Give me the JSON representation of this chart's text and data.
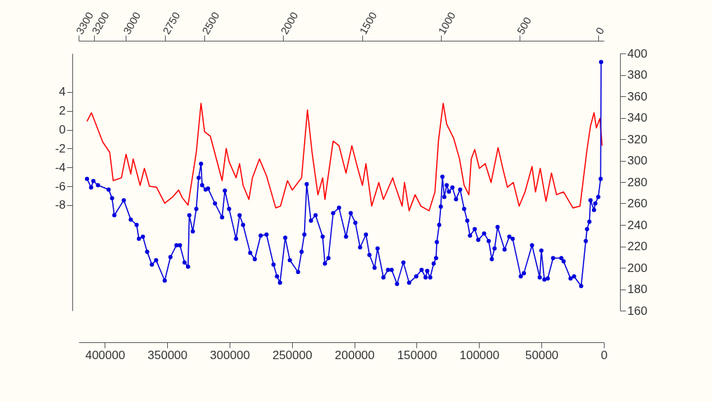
{
  "chart_data": {
    "type": "line",
    "xlim": [
      421000,
      0
    ],
    "xticks": [
      400000,
      350000,
      300000,
      250000,
      200000,
      150000,
      100000,
      50000,
      0
    ],
    "x2lim": [
      3300,
      -36
    ],
    "x2ticks": [
      3300,
      3200,
      3000,
      2750,
      2500,
      2000,
      1500,
      1000,
      500,
      0
    ],
    "ylim": [
      -19.2,
      8.1
    ],
    "yticks": [
      -8,
      -6,
      -4,
      -2,
      0,
      2,
      4
    ],
    "y2lim": [
      160,
      400
    ],
    "y2ticks": [
      160,
      180,
      200,
      220,
      240,
      260,
      280,
      300,
      320,
      340,
      360,
      380,
      400
    ],
    "series": [
      {
        "color": "#ff0000",
        "line_style": "solid",
        "x": [
          414300,
          410700,
          401700,
          396100,
          393300,
          386700,
          383000,
          379200,
          377300,
          371700,
          368300,
          364200,
          358600,
          352000,
          345400,
          340800,
          338000,
          333300,
          326700,
          322900,
          320100,
          315400,
          306000,
          302700,
          300400,
          294800,
          292000,
          289200,
          284500,
          281700,
          276100,
          270400,
          263000,
          259200,
          253600,
          249800,
          242300,
          237600,
          233900,
          229200,
          225400,
          223600,
          217000,
          212300,
          206700,
          202000,
          197300,
          193500,
          190700,
          186100,
          180400,
          176700,
          169200,
          168200,
          161700,
          159800,
          156100,
          151300,
          146700,
          140100,
          135400,
          132600,
          128800,
          126000,
          120400,
          115700,
          112000,
          108200,
          106300,
          103500,
          99800,
          95100,
          90400,
          84800,
          81000,
          77300,
          72600,
          67900,
          63200,
          57600,
          54800,
          51000,
          46400,
          42000,
          37900,
          32300,
          24800,
          19100,
          16300,
          13500,
          10700,
          7900,
          6000,
          3200,
          1400
        ],
        "values": [
          0.9,
          1.8,
          -1.3,
          -2.4,
          -5.4,
          -5.1,
          -2.6,
          -4.7,
          -3.1,
          -5.9,
          -4.1,
          -6.0,
          -6.1,
          -7.8,
          -7.1,
          -6.4,
          -7.2,
          -8.0,
          -2.4,
          2.8,
          -0.2,
          -0.7,
          -5.4,
          -2.0,
          -3.4,
          -5.1,
          -3.6,
          -5.9,
          -7.4,
          -5.1,
          -3.1,
          -4.9,
          -8.3,
          -8.1,
          -5.4,
          -6.4,
          -5.1,
          2.1,
          -2.4,
          -6.9,
          -5.1,
          -7.4,
          -1.2,
          -1.7,
          -4.6,
          -1.7,
          -4.1,
          -5.9,
          -3.6,
          -8.1,
          -5.6,
          -7.4,
          -5.1,
          -5.6,
          -8.1,
          -5.6,
          -8.6,
          -6.9,
          -8.1,
          -8.6,
          -6.6,
          -1.2,
          2.8,
          0.6,
          -0.9,
          -3.1,
          -5.9,
          -6.9,
          -3.1,
          -2.1,
          -4.1,
          -3.6,
          -5.6,
          -1.9,
          -4.1,
          -6.1,
          -5.6,
          -8.1,
          -6.6,
          -3.9,
          -6.6,
          -4.1,
          -7.6,
          -4.6,
          -6.9,
          -6.6,
          -8.3,
          -8.1,
          -5.1,
          -2.1,
          0.4,
          1.8,
          0.2,
          1.2,
          -1.7
        ]
      },
      {
        "color": "#0000dd",
        "axis": "y2",
        "marker": "circle",
        "line_style": "solid",
        "x": [
          414300,
          411000,
          409200,
          405500,
          397000,
          394200,
          392400,
          384800,
          379200,
          374500,
          372700,
          369500,
          366100,
          362300,
          358900,
          352000,
          347400,
          342600,
          339800,
          336100,
          333300,
          332300,
          329500,
          326700,
          324800,
          322900,
          322000,
          319200,
          317300,
          311700,
          306000,
          303800,
          300400,
          294800,
          292000,
          289200,
          283500,
          279800,
          275100,
          270400,
          264800,
          262000,
          259600,
          255400,
          251700,
          245100,
          242300,
          240100,
          238200,
          234800,
          231100,
          225400,
          223600,
          220800,
          217000,
          212300,
          206700,
          202900,
          199200,
          195400,
          190700,
          187900,
          183800,
          181400,
          176700,
          173000,
          170100,
          165800,
          160700,
          156100,
          150400,
          146100,
          142900,
          141600,
          139200,
          136400,
          134500,
          133900,
          132000,
          130700,
          129400,
          127900,
          126000,
          124200,
          121400,
          118500,
          115200,
          112000,
          109500,
          107300,
          103500,
          100700,
          96000,
          92300,
          89800,
          87600,
          85200,
          79600,
          75800,
          73100,
          66600,
          64100,
          57600,
          51400,
          50100,
          47700,
          45000,
          40700,
          34100,
          32300,
          26700,
          23900,
          18200,
          14500,
          13500,
          11600,
          10700,
          7900,
          6900,
          4500,
          2600,
          2200
        ],
        "values": [
          283,
          275,
          281,
          277,
          273,
          265,
          249,
          263,
          245,
          240,
          227,
          229,
          215,
          203,
          207,
          188,
          210,
          221,
          221,
          205,
          201,
          249,
          234,
          255,
          284,
          297,
          277,
          273,
          274,
          260,
          247,
          272,
          255,
          227,
          249,
          240,
          214,
          208,
          230,
          231,
          203,
          192,
          186,
          228,
          207,
          196,
          215,
          231,
          278,
          244,
          249,
          229,
          204,
          209,
          251,
          256,
          229,
          251,
          242,
          219,
          231,
          212,
          200,
          218,
          191,
          198,
          198,
          185,
          205,
          186,
          192,
          198,
          191,
          197,
          191,
          204,
          209,
          224,
          240,
          257,
          285,
          266,
          277,
          271,
          275,
          264,
          273,
          255,
          244,
          230,
          236,
          226,
          232,
          225,
          208,
          218,
          238,
          217,
          229,
          227,
          192,
          195,
          221,
          191,
          216,
          189,
          190,
          209,
          209,
          206,
          190,
          192,
          183,
          225,
          236,
          243,
          263,
          254,
          260,
          266,
          283,
          392
        ]
      }
    ]
  }
}
